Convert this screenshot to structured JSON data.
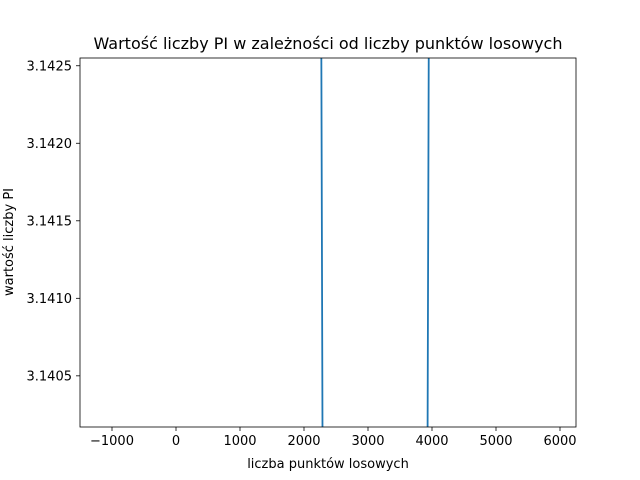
{
  "chart_data": {
    "type": "line",
    "title": "Wartość liczby PI w zależności od liczby punktów losowych",
    "xlabel": "liczba punktów losowych",
    "ylabel": "wartość liczby PI",
    "xlim": [
      -1500,
      6250
    ],
    "ylim": [
      3.14017,
      3.14255
    ],
    "x_ticks": [
      -1000,
      0,
      1000,
      2000,
      3000,
      4000,
      5000,
      6000
    ],
    "x_tick_labels": [
      "−1000",
      "0",
      "1000",
      "2000",
      "3000",
      "4000",
      "5000",
      "6000"
    ],
    "y_ticks": [
      3.1405,
      3.141,
      3.1415,
      3.142,
      3.1425
    ],
    "y_tick_labels": [
      "3.1405",
      "3.1410",
      "3.1415",
      "3.1420",
      "3.1425"
    ],
    "grid": false,
    "series": [
      {
        "color": "#1f77b4",
        "x": [
          2270,
          2290,
          3930,
          3950
        ],
        "y": [
          3.1427,
          3.14,
          3.14,
          3.1427
        ]
      }
    ]
  }
}
